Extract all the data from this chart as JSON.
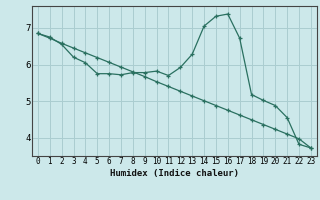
{
  "background_color": "#cce8ea",
  "grid_color": "#aacdd0",
  "line_color": "#2a7060",
  "xlabel": "Humidex (Indice chaleur)",
  "xlim": [
    -0.5,
    23.5
  ],
  "ylim": [
    3.5,
    7.6
  ],
  "yticks": [
    4,
    5,
    6,
    7
  ],
  "xticks": [
    0,
    1,
    2,
    3,
    4,
    5,
    6,
    7,
    8,
    9,
    10,
    11,
    12,
    13,
    14,
    15,
    16,
    17,
    18,
    19,
    20,
    21,
    22,
    23
  ],
  "line1_x": [
    0,
    1,
    2,
    3,
    4,
    5,
    6,
    7,
    8,
    9,
    10,
    11,
    12,
    13,
    14,
    15,
    16,
    17,
    18,
    19,
    20,
    21,
    22,
    23
  ],
  "line1_y": [
    6.85,
    6.75,
    6.55,
    6.2,
    6.05,
    5.75,
    5.75,
    5.72,
    5.78,
    5.78,
    5.82,
    5.7,
    5.92,
    6.28,
    7.05,
    7.32,
    7.38,
    6.72,
    5.18,
    5.02,
    4.88,
    4.55,
    3.82,
    3.72
  ],
  "line2_x": [
    0,
    1,
    2,
    3,
    4,
    5,
    6,
    7,
    8,
    9,
    10,
    11,
    12,
    13,
    14,
    15,
    16,
    17,
    18,
    19,
    20,
    21,
    22,
    23
  ],
  "line2_y": [
    6.85,
    6.72,
    6.58,
    6.45,
    6.32,
    6.19,
    6.06,
    5.93,
    5.8,
    5.67,
    5.53,
    5.4,
    5.27,
    5.14,
    5.01,
    4.88,
    4.75,
    4.62,
    4.49,
    4.36,
    4.23,
    4.1,
    3.97,
    3.72
  ]
}
